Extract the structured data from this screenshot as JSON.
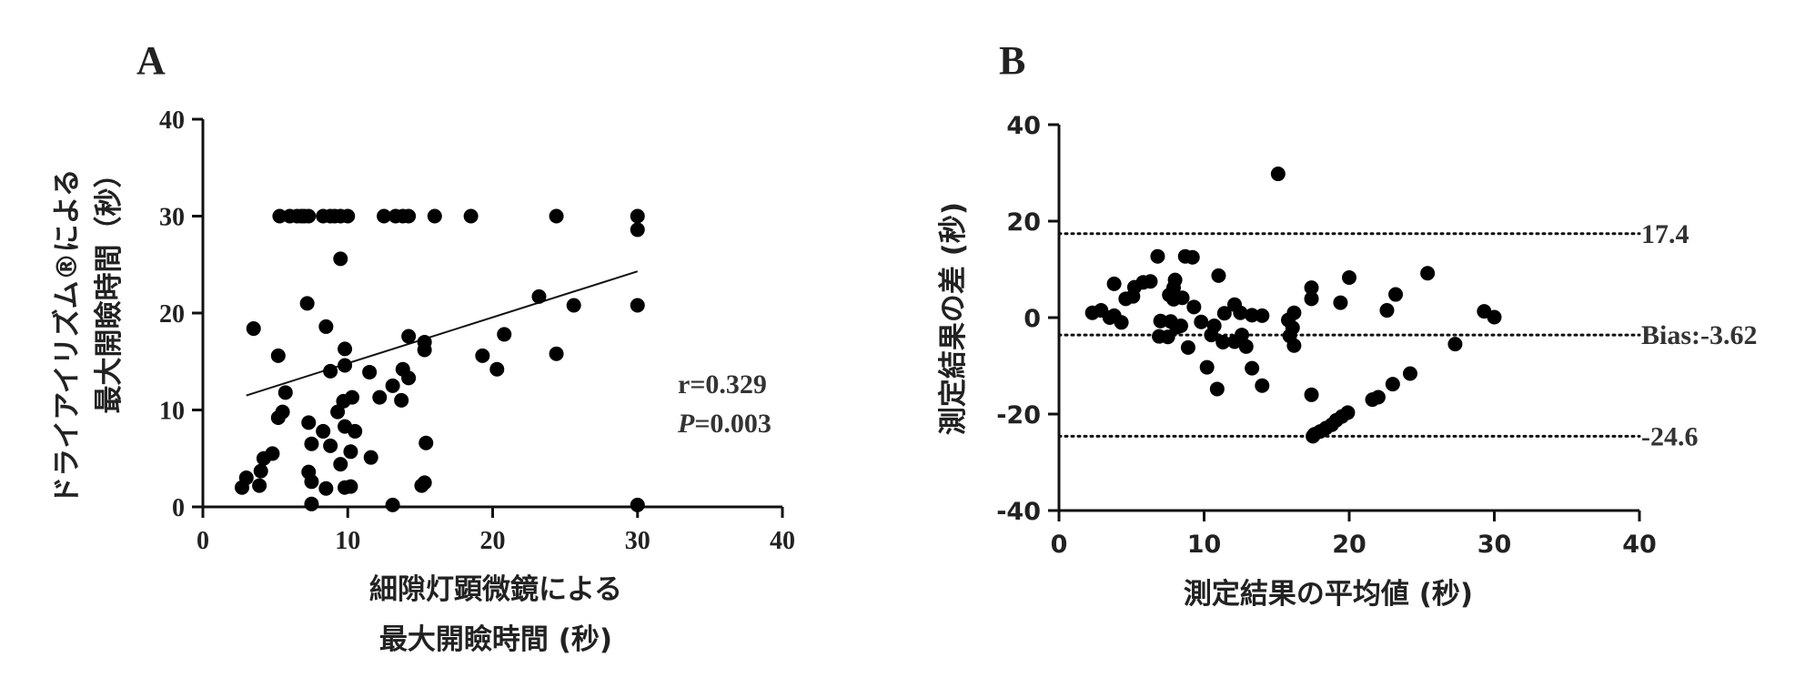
{
  "chart_data": [
    {
      "panel_label": "A",
      "type": "scatter",
      "title": "",
      "xlabel_lines": [
        "細隙灯顕微鏡による",
        "最大開瞼時間 (秒)"
      ],
      "ylabel_lines": [
        "ドライアイリズム®による",
        "最大開瞼時間（秒）"
      ],
      "xlim": [
        0,
        40
      ],
      "ylim": [
        0,
        40
      ],
      "xticks": [
        "0",
        "10",
        "20",
        "30",
        "40"
      ],
      "yticks": [
        "0",
        "10",
        "20",
        "30",
        "40"
      ],
      "stats": {
        "r": "r=0.329",
        "p_symbol": "P",
        "p_value": "=0.003"
      },
      "regression": {
        "x": [
          3,
          30
        ],
        "y": [
          11.5,
          24.3
        ]
      },
      "points": [
        [
          5.3,
          30
        ],
        [
          6.0,
          30
        ],
        [
          6.5,
          30
        ],
        [
          6.8,
          30
        ],
        [
          7.0,
          30
        ],
        [
          7.3,
          30
        ],
        [
          8.3,
          30
        ],
        [
          8.8,
          30
        ],
        [
          9.1,
          30
        ],
        [
          9.5,
          30
        ],
        [
          10.0,
          30
        ],
        [
          12.5,
          30
        ],
        [
          13.3,
          30
        ],
        [
          13.8,
          30
        ],
        [
          14.2,
          30
        ],
        [
          16.0,
          30
        ],
        [
          18.5,
          30
        ],
        [
          24.4,
          30
        ],
        [
          30,
          30
        ],
        [
          30,
          28.6
        ],
        [
          9.5,
          25.6
        ],
        [
          23.2,
          21.7
        ],
        [
          7.2,
          21.0
        ],
        [
          25.6,
          20.8
        ],
        [
          30,
          20.8
        ],
        [
          3.5,
          18.4
        ],
        [
          8.5,
          18.6
        ],
        [
          14.2,
          17.6
        ],
        [
          15.3,
          17.0
        ],
        [
          20.8,
          17.8
        ],
        [
          19.3,
          15.6
        ],
        [
          15.3,
          16.2
        ],
        [
          5.2,
          15.6
        ],
        [
          9.8,
          16.3
        ],
        [
          24.4,
          15.8
        ],
        [
          9.8,
          14.6
        ],
        [
          8.8,
          14.0
        ],
        [
          11.5,
          13.9
        ],
        [
          13.8,
          14.2
        ],
        [
          20.3,
          14.2
        ],
        [
          14.2,
          13.3
        ],
        [
          13.1,
          12.5
        ],
        [
          5.7,
          11.8
        ],
        [
          12.2,
          11.3
        ],
        [
          10.3,
          11.3
        ],
        [
          13.7,
          11.0
        ],
        [
          9.7,
          10.9
        ],
        [
          5.5,
          9.8
        ],
        [
          5.2,
          9.2
        ],
        [
          9.3,
          9.8
        ],
        [
          7.3,
          8.7
        ],
        [
          8.3,
          7.8
        ],
        [
          9.8,
          8.3
        ],
        [
          10.5,
          7.8
        ],
        [
          7.5,
          6.5
        ],
        [
          15.4,
          6.6
        ],
        [
          8.8,
          6.3
        ],
        [
          10.2,
          5.7
        ],
        [
          9.5,
          4.4
        ],
        [
          4.8,
          5.5
        ],
        [
          4.2,
          5.0
        ],
        [
          11.6,
          5.1
        ],
        [
          4.0,
          3.7
        ],
        [
          7.3,
          3.6
        ],
        [
          3.0,
          3.0
        ],
        [
          7.5,
          2.6
        ],
        [
          9.8,
          2.0
        ],
        [
          10.2,
          2.1
        ],
        [
          8.5,
          1.9
        ],
        [
          15.3,
          2.5
        ],
        [
          15.1,
          2.2
        ],
        [
          3.9,
          2.2
        ],
        [
          2.7,
          2.0
        ],
        [
          7.5,
          0.3
        ],
        [
          13.1,
          0.2
        ],
        [
          30,
          0.2
        ]
      ]
    },
    {
      "panel_label": "B",
      "type": "scatter",
      "title": "",
      "xlabel_lines": [
        "測定結果の平均値 (秒)"
      ],
      "ylabel_lines": [
        "測定結果の差 (秒)"
      ],
      "xlim": [
        0,
        40
      ],
      "ylim": [
        -40,
        40
      ],
      "xticks": [
        "0",
        "10",
        "20",
        "30",
        "40"
      ],
      "yticks": [
        "-40",
        "-20",
        "0",
        "20",
        "40"
      ],
      "reference_lines": [
        {
          "y": 17.4,
          "label": "17.4"
        },
        {
          "y": -3.62,
          "label": "Bias:-3.62"
        },
        {
          "y": -24.6,
          "label": "-24.6"
        }
      ],
      "points": [
        [
          15.1,
          29.8
        ],
        [
          6.8,
          12.7
        ],
        [
          8.7,
          12.7
        ],
        [
          9.2,
          12.5
        ],
        [
          25.4,
          9.2
        ],
        [
          8.0,
          7.8
        ],
        [
          11.0,
          8.7
        ],
        [
          20.0,
          8.3
        ],
        [
          17.4,
          6.2
        ],
        [
          3.8,
          7.0
        ],
        [
          5.8,
          7.3
        ],
        [
          6.3,
          7.5
        ],
        [
          5.2,
          6.3
        ],
        [
          7.9,
          6.2
        ],
        [
          19.4,
          3.1
        ],
        [
          23.2,
          4.8
        ],
        [
          7.6,
          4.7
        ],
        [
          8.5,
          4.1
        ],
        [
          5.1,
          4.4
        ],
        [
          7.9,
          3.8
        ],
        [
          4.6,
          3.9
        ],
        [
          17.4,
          3.9
        ],
        [
          12.1,
          2.7
        ],
        [
          22.6,
          1.5
        ],
        [
          29.3,
          1.3
        ],
        [
          30.0,
          0.1
        ],
        [
          9.3,
          2.2
        ],
        [
          2.3,
          1.0
        ],
        [
          2.9,
          1.5
        ],
        [
          3.8,
          0.4
        ],
        [
          3.5,
          0.0
        ],
        [
          11.4,
          0.9
        ],
        [
          12.5,
          1.0
        ],
        [
          16.2,
          1.0
        ],
        [
          15.8,
          -0.5
        ],
        [
          7.0,
          -0.7
        ],
        [
          4.3,
          -1.0
        ],
        [
          7.7,
          -0.8
        ],
        [
          9.8,
          -0.9
        ],
        [
          8.1,
          -2.0
        ],
        [
          8.4,
          -1.7
        ],
        [
          10.7,
          -1.7
        ],
        [
          13.3,
          0.5
        ],
        [
          14.0,
          0.4
        ],
        [
          16.1,
          -2.1
        ],
        [
          15.9,
          -3.8
        ],
        [
          12.6,
          -3.6
        ],
        [
          6.9,
          -3.9
        ],
        [
          7.5,
          -4.0
        ],
        [
          10.5,
          -3.6
        ],
        [
          11.3,
          -5.1
        ],
        [
          12.1,
          -5.0
        ],
        [
          16.2,
          -5.8
        ],
        [
          12.9,
          -6.0
        ],
        [
          8.9,
          -6.2
        ],
        [
          27.3,
          -5.5
        ],
        [
          10.2,
          -10.3
        ],
        [
          13.3,
          -10.5
        ],
        [
          24.2,
          -11.6
        ],
        [
          14.0,
          -14.1
        ],
        [
          23.0,
          -13.8
        ],
        [
          10.9,
          -14.8
        ],
        [
          17.4,
          -16.0
        ],
        [
          21.6,
          -17.0
        ],
        [
          22.0,
          -16.5
        ],
        [
          19.9,
          -19.7
        ],
        [
          19.5,
          -20.5
        ],
        [
          19.1,
          -21.3
        ],
        [
          18.8,
          -22.2
        ],
        [
          18.4,
          -22.9
        ],
        [
          18.0,
          -23.6
        ],
        [
          17.6,
          -24.2
        ],
        [
          17.5,
          -24.6
        ]
      ]
    }
  ]
}
